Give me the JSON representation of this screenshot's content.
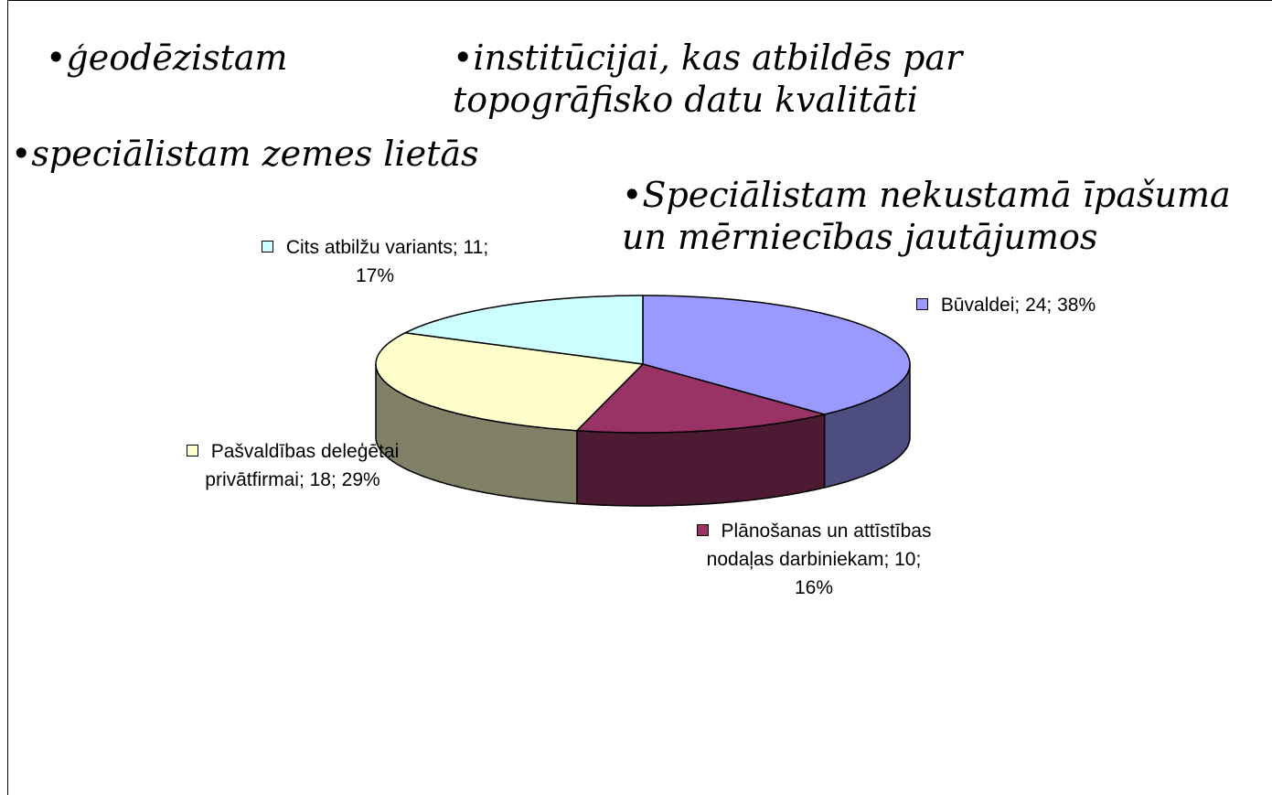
{
  "chart_data": {
    "type": "pie3d",
    "annotations": [
      "•ģeodēzistam",
      "•institūcijai, kas atbildēs par topogrāfisko datu kvalitāti",
      "•speciālistam zemes lietās",
      "•Speciālistam nekustamā īpašuma un mērniecības jautājumos"
    ],
    "values": [
      24,
      10,
      18,
      11
    ],
    "value_labels": [
      "Būvaldei; 24; 38%",
      "Plānošanas un attīstības nodaļas darbiniekam; 10; 16%",
      "Pašvaldības deleģētai privātfirmai; 18; 29%",
      "Cits atbilžu variants; 11; 17%"
    ],
    "colors": [
      "#9999ff",
      "#993366",
      "#ffffcc",
      "#ccffff"
    ]
  }
}
